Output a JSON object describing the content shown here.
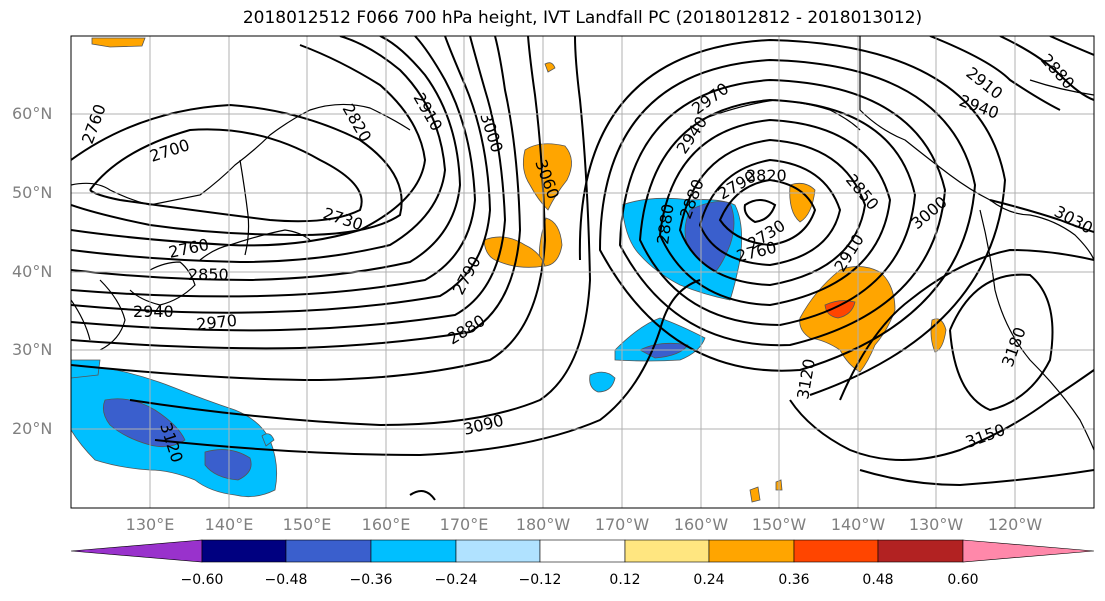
{
  "title": "2018012512 F066 700 hPa height, IVT Landfall PC (2018012812 - 2018013012)",
  "lat_labels": [
    "60°N",
    "50°N",
    "40°N",
    "30°N",
    "20°N"
  ],
  "lon_labels": [
    "130°E",
    "140°E",
    "150°E",
    "160°E",
    "170°E",
    "180°W",
    "170°W",
    "160°W",
    "150°W",
    "140°W",
    "130°W",
    "120°W"
  ],
  "contour_labels": [
    "2760",
    "2700",
    "2820",
    "2910",
    "3000",
    "3060",
    "2730",
    "2760",
    "2850",
    "2940",
    "2970",
    "2790",
    "2880",
    "3090",
    "3120",
    "2970",
    "2940",
    "2910",
    "2880",
    "2880",
    "2790",
    "2820",
    "2850",
    "2730",
    "2760",
    "2910",
    "3000",
    "3030",
    "3180",
    "3120",
    "3150",
    "2940",
    "2880"
  ],
  "colorbar": {
    "ticks": [
      "−0.60",
      "−0.48",
      "−0.36",
      "−0.24",
      "−0.12",
      "0.12",
      "0.24",
      "0.36",
      "0.48",
      "0.60"
    ],
    "colors": [
      "#9932CC",
      "#000080",
      "#3A5FCD",
      "#00BFFF",
      "#B0E2FF",
      "#FFFFFF",
      "#FFE680",
      "#FFA500",
      "#FF4500",
      "#B22222",
      "#FF88AA"
    ]
  }
}
